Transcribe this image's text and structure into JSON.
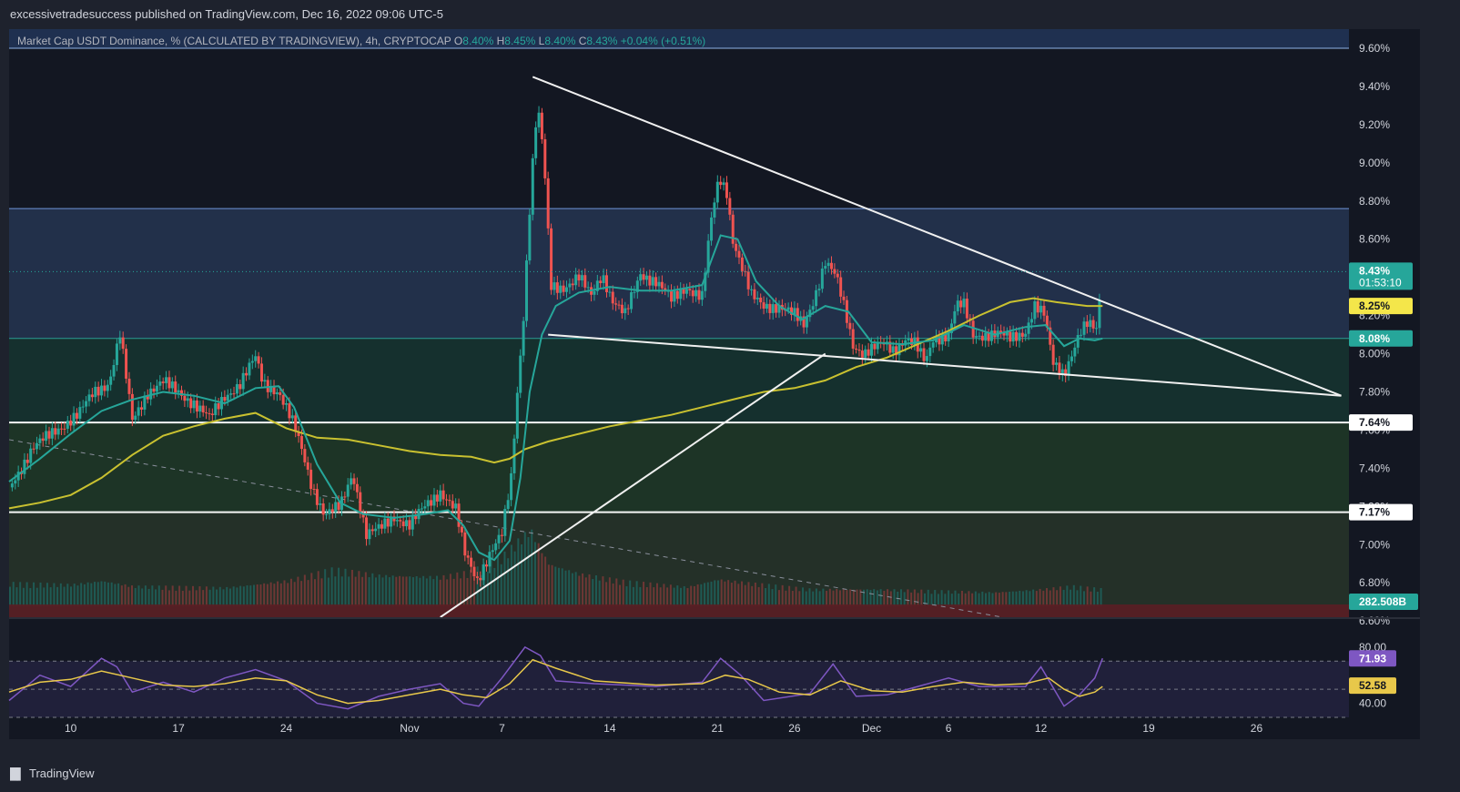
{
  "header": {
    "published_line": "excessivetradesuccess published on TradingView.com, Dec 16, 2022 09:06 UTC-5"
  },
  "legend": {
    "symbol": "Market Cap USDT Dominance, % (CALCULATED BY TRADINGVIEW), 4h, CRYPTOCAP",
    "o_key": "O",
    "o_val": "8.40%",
    "h_key": "H",
    "h_val": "8.45%",
    "l_key": "L",
    "l_val": "8.40%",
    "c_key": "C",
    "c_val": "8.43%",
    "change": "+0.04% (+0.51%)"
  },
  "footer": {
    "brand": "TradingView"
  },
  "colors": {
    "background": "#131722",
    "up": "#26a69a",
    "down": "#ef5350",
    "ema_fast": "#26a69a",
    "ma_slow": "#c9c130",
    "rsi": "#7e57c2",
    "rsi_ma": "#e8c84a",
    "zone_blue": "#22304a",
    "zone_teal": "#15302e",
    "zone_green": "#1d3426",
    "zone_olive": "#243028"
  },
  "chart_data": [
    {
      "type": "candlestick",
      "title": "Market Cap USDT Dominance, % (CALCULATED BY TRADINGVIEW), 4h, CRYPTOCAP",
      "y_unit": "%",
      "ylim": [
        6.62,
        9.7
      ],
      "y_ticks": [
        "9.60%",
        "9.40%",
        "9.20%",
        "9.00%",
        "8.80%",
        "8.60%",
        "8.40%",
        "8.20%",
        "8.00%",
        "7.80%",
        "7.60%",
        "7.40%",
        "7.20%",
        "7.00%",
        "6.80%",
        "6.60%"
      ],
      "x_ticks": [
        "10",
        "17",
        "24",
        "Nov",
        "7",
        "14",
        "21",
        "26",
        "Dec",
        "6",
        "12",
        "19",
        "26"
      ],
      "x_tick_day": [
        10,
        17,
        24,
        32,
        38,
        45,
        52,
        57,
        62,
        67,
        73,
        80,
        87
      ],
      "x_day_range": [
        6,
        93
      ],
      "price_path": [
        [
          6,
          7.3
        ],
        [
          7.5,
          7.5
        ],
        [
          9,
          7.6
        ],
        [
          10.5,
          7.68
        ],
        [
          11.5,
          7.8
        ],
        [
          12.5,
          7.85
        ],
        [
          13.2,
          8.1
        ],
        [
          14,
          7.65
        ],
        [
          15,
          7.8
        ],
        [
          16,
          7.85
        ],
        [
          17,
          7.8
        ],
        [
          18,
          7.74
        ],
        [
          19,
          7.66
        ],
        [
          20,
          7.78
        ],
        [
          21,
          7.84
        ],
        [
          22,
          7.98
        ],
        [
          22.5,
          7.85
        ],
        [
          23.5,
          7.8
        ],
        [
          24.5,
          7.62
        ],
        [
          25,
          7.5
        ],
        [
          25.7,
          7.3
        ],
        [
          26.5,
          7.15
        ],
        [
          27.5,
          7.2
        ],
        [
          28.3,
          7.38
        ],
        [
          29.2,
          7.05
        ],
        [
          30,
          7.08
        ],
        [
          31,
          7.15
        ],
        [
          32,
          7.1
        ],
        [
          33,
          7.2
        ],
        [
          34,
          7.28
        ],
        [
          35,
          7.18
        ],
        [
          35.6,
          6.95
        ],
        [
          36.4,
          6.82
        ],
        [
          37.2,
          6.95
        ],
        [
          38,
          7.05
        ],
        [
          38.6,
          7.35
        ],
        [
          39,
          7.8
        ],
        [
          39.4,
          8.2
        ],
        [
          39.9,
          8.9
        ],
        [
          40.3,
          9.3
        ],
        [
          40.7,
          9.05
        ],
        [
          41.2,
          8.35
        ],
        [
          42,
          8.35
        ],
        [
          43,
          8.4
        ],
        [
          43.8,
          8.3
        ],
        [
          44.5,
          8.42
        ],
        [
          45.2,
          8.28
        ],
        [
          46,
          8.2
        ],
        [
          47,
          8.42
        ],
        [
          48,
          8.38
        ],
        [
          49,
          8.28
        ],
        [
          50,
          8.35
        ],
        [
          51,
          8.3
        ],
        [
          51.6,
          8.7
        ],
        [
          52.1,
          8.92
        ],
        [
          52.6,
          8.85
        ],
        [
          53,
          8.6
        ],
        [
          53.6,
          8.45
        ],
        [
          54.2,
          8.3
        ],
        [
          55,
          8.25
        ],
        [
          56,
          8.25
        ],
        [
          57,
          8.2
        ],
        [
          57.6,
          8.15
        ],
        [
          58.3,
          8.3
        ],
        [
          59,
          8.48
        ],
        [
          59.7,
          8.4
        ],
        [
          60.3,
          8.22
        ],
        [
          60.8,
          8.05
        ],
        [
          61.5,
          8.0
        ],
        [
          62,
          8.02
        ],
        [
          62.8,
          8.05
        ],
        [
          63.5,
          8.02
        ],
        [
          64.2,
          8.08
        ],
        [
          64.8,
          8.05
        ],
        [
          65.5,
          7.95
        ],
        [
          66,
          8.08
        ],
        [
          67,
          8.1
        ],
        [
          67.5,
          8.25
        ],
        [
          68,
          8.25
        ],
        [
          68.6,
          8.1
        ],
        [
          69.4,
          8.1
        ],
        [
          70.2,
          8.1
        ],
        [
          71,
          8.08
        ],
        [
          72,
          8.12
        ],
        [
          72.6,
          8.25
        ],
        [
          73.2,
          8.2
        ],
        [
          73.8,
          7.95
        ],
        [
          74.5,
          7.9
        ],
        [
          75,
          8.0
        ],
        [
          75.5,
          8.1
        ],
        [
          76,
          8.15
        ],
        [
          76.6,
          8.13
        ],
        [
          77,
          8.43
        ]
      ],
      "ema_path": [
        [
          6,
          7.33
        ],
        [
          8,
          7.45
        ],
        [
          10,
          7.58
        ],
        [
          12,
          7.7
        ],
        [
          14,
          7.76
        ],
        [
          16,
          7.8
        ],
        [
          18,
          7.78
        ],
        [
          20,
          7.74
        ],
        [
          22,
          7.82
        ],
        [
          23.5,
          7.83
        ],
        [
          24.5,
          7.72
        ],
        [
          26,
          7.42
        ],
        [
          27.5,
          7.22
        ],
        [
          29,
          7.16
        ],
        [
          31,
          7.14
        ],
        [
          33,
          7.16
        ],
        [
          34.5,
          7.18
        ],
        [
          35.5,
          7.1
        ],
        [
          36.5,
          6.96
        ],
        [
          37.5,
          6.92
        ],
        [
          38.5,
          7.02
        ],
        [
          39.2,
          7.35
        ],
        [
          39.8,
          7.8
        ],
        [
          40.6,
          8.1
        ],
        [
          41.5,
          8.25
        ],
        [
          43,
          8.32
        ],
        [
          45,
          8.35
        ],
        [
          47,
          8.33
        ],
        [
          49,
          8.33
        ],
        [
          51,
          8.36
        ],
        [
          52.2,
          8.62
        ],
        [
          53.3,
          8.6
        ],
        [
          54.5,
          8.38
        ],
        [
          56,
          8.25
        ],
        [
          57.5,
          8.18
        ],
        [
          59,
          8.25
        ],
        [
          60.5,
          8.22
        ],
        [
          62,
          8.06
        ],
        [
          64,
          8.05
        ],
        [
          66,
          8.07
        ],
        [
          68,
          8.15
        ],
        [
          70,
          8.1
        ],
        [
          72,
          8.14
        ],
        [
          73.3,
          8.15
        ],
        [
          74.5,
          8.04
        ],
        [
          75.5,
          8.08
        ],
        [
          76.5,
          8.07
        ],
        [
          77,
          8.08
        ]
      ],
      "ma_path": [
        [
          6,
          7.19
        ],
        [
          8,
          7.22
        ],
        [
          10,
          7.26
        ],
        [
          12,
          7.35
        ],
        [
          14,
          7.47
        ],
        [
          16,
          7.57
        ],
        [
          18,
          7.62
        ],
        [
          20,
          7.66
        ],
        [
          22,
          7.69
        ],
        [
          24,
          7.61
        ],
        [
          26,
          7.56
        ],
        [
          28,
          7.55
        ],
        [
          30,
          7.52
        ],
        [
          32,
          7.49
        ],
        [
          34,
          7.47
        ],
        [
          36,
          7.46
        ],
        [
          37.5,
          7.43
        ],
        [
          38.5,
          7.45
        ],
        [
          39.5,
          7.5
        ],
        [
          41,
          7.54
        ],
        [
          43,
          7.58
        ],
        [
          45,
          7.62
        ],
        [
          47,
          7.65
        ],
        [
          49,
          7.68
        ],
        [
          51,
          7.72
        ],
        [
          53,
          7.76
        ],
        [
          55,
          7.8
        ],
        [
          57,
          7.82
        ],
        [
          59,
          7.86
        ],
        [
          61,
          7.93
        ],
        [
          63,
          7.98
        ],
        [
          65,
          8.05
        ],
        [
          67,
          8.12
        ],
        [
          69,
          8.2
        ],
        [
          71,
          8.27
        ],
        [
          72.5,
          8.29
        ],
        [
          74,
          8.27
        ],
        [
          76,
          8.25
        ],
        [
          77,
          8.25
        ]
      ],
      "volume_path": [
        [
          6,
          0.3
        ],
        [
          10,
          0.28
        ],
        [
          12,
          0.33
        ],
        [
          14,
          0.26
        ],
        [
          20,
          0.24
        ],
        [
          24,
          0.33
        ],
        [
          27,
          0.48
        ],
        [
          30,
          0.4
        ],
        [
          34,
          0.38
        ],
        [
          36,
          0.45
        ],
        [
          38,
          0.65
        ],
        [
          39.8,
          1.0
        ],
        [
          41,
          0.55
        ],
        [
          43,
          0.42
        ],
        [
          46,
          0.32
        ],
        [
          50,
          0.25
        ],
        [
          52,
          0.35
        ],
        [
          54,
          0.3
        ],
        [
          58,
          0.22
        ],
        [
          62,
          0.22
        ],
        [
          66,
          0.2
        ],
        [
          70,
          0.18
        ],
        [
          73,
          0.22
        ],
        [
          75,
          0.26
        ],
        [
          77,
          0.22
        ]
      ],
      "horizontal_levels": [
        {
          "value": 9.6,
          "label": ""
        },
        {
          "value": 8.76,
          "label": ""
        },
        {
          "value": 8.08,
          "label": "8.08%"
        },
        {
          "value": 7.64,
          "label": "7.64%"
        },
        {
          "value": 7.17,
          "label": "7.17%"
        }
      ],
      "trendlines": [
        {
          "from": [
            40.0,
            9.45
          ],
          "to": [
            92.5,
            7.78
          ]
        },
        {
          "from": [
            41.0,
            8.1
          ],
          "to": [
            92.5,
            7.78
          ]
        },
        {
          "from": [
            34.0,
            6.62
          ],
          "to": [
            59.0,
            8.0
          ]
        }
      ],
      "dashed_line": {
        "from": [
          6,
          7.55
        ],
        "to": [
          70.5,
          6.62
        ]
      },
      "price_labels": [
        {
          "value": 8.43,
          "text": "8.43%",
          "subtext": "01:53:10",
          "kind": "last"
        },
        {
          "value": 8.25,
          "text": "8.25%",
          "kind": "ma"
        },
        {
          "value": 8.08,
          "text": "8.08%",
          "kind": "ema"
        },
        {
          "value": 7.64,
          "text": "7.64%",
          "kind": "level"
        },
        {
          "value": 7.17,
          "text": "7.17%",
          "kind": "level"
        }
      ],
      "volume_label": "282.508B"
    },
    {
      "type": "line",
      "title": "RSI",
      "ylim": [
        30,
        100
      ],
      "y_ticks": [
        "80.00",
        "40.00"
      ],
      "bands": [
        70,
        50,
        30
      ],
      "rsi_path": [
        [
          6,
          42
        ],
        [
          8,
          60
        ],
        [
          10,
          52
        ],
        [
          12,
          72
        ],
        [
          13,
          66
        ],
        [
          14,
          48
        ],
        [
          16,
          55
        ],
        [
          18,
          48
        ],
        [
          20,
          58
        ],
        [
          22,
          64
        ],
        [
          24,
          56
        ],
        [
          26,
          40
        ],
        [
          28,
          36
        ],
        [
          30,
          45
        ],
        [
          32,
          50
        ],
        [
          34,
          54
        ],
        [
          35.5,
          40
        ],
        [
          36.5,
          38
        ],
        [
          38,
          58
        ],
        [
          39.5,
          80
        ],
        [
          40.5,
          74
        ],
        [
          41.5,
          56
        ],
        [
          44,
          54
        ],
        [
          48,
          52
        ],
        [
          51,
          55
        ],
        [
          52.2,
          72
        ],
        [
          53.5,
          60
        ],
        [
          55,
          42
        ],
        [
          58,
          47
        ],
        [
          59.5,
          68
        ],
        [
          61,
          45
        ],
        [
          63,
          46
        ],
        [
          65,
          52
        ],
        [
          67,
          58
        ],
        [
          69,
          52
        ],
        [
          72,
          52
        ],
        [
          73,
          66
        ],
        [
          74.5,
          38
        ],
        [
          75.5,
          46
        ],
        [
          76.5,
          58
        ],
        [
          77,
          72
        ]
      ],
      "rsi_ma_path": [
        [
          6,
          48
        ],
        [
          8,
          55
        ],
        [
          10,
          57
        ],
        [
          12,
          63
        ],
        [
          14,
          58
        ],
        [
          16,
          53
        ],
        [
          18,
          52
        ],
        [
          20,
          54
        ],
        [
          22,
          58
        ],
        [
          24,
          56
        ],
        [
          26,
          46
        ],
        [
          28,
          40
        ],
        [
          30,
          42
        ],
        [
          32,
          46
        ],
        [
          34,
          50
        ],
        [
          35.5,
          46
        ],
        [
          37,
          44
        ],
        [
          38.5,
          54
        ],
        [
          40,
          71
        ],
        [
          41.5,
          65
        ],
        [
          44,
          56
        ],
        [
          48,
          53
        ],
        [
          51,
          54
        ],
        [
          52.5,
          60
        ],
        [
          54,
          57
        ],
        [
          56,
          48
        ],
        [
          58,
          46
        ],
        [
          60,
          56
        ],
        [
          62,
          49
        ],
        [
          64,
          48
        ],
        [
          66,
          52
        ],
        [
          68,
          55
        ],
        [
          70,
          53
        ],
        [
          72,
          54
        ],
        [
          73.5,
          58
        ],
        [
          74.5,
          50
        ],
        [
          75.5,
          45
        ],
        [
          76.5,
          48
        ],
        [
          77,
          52
        ]
      ],
      "price_labels": [
        {
          "value": 71.93,
          "text": "71.93",
          "kind": "rsi"
        },
        {
          "value": 52.58,
          "text": "52.58",
          "kind": "rsi_ma"
        }
      ]
    }
  ]
}
